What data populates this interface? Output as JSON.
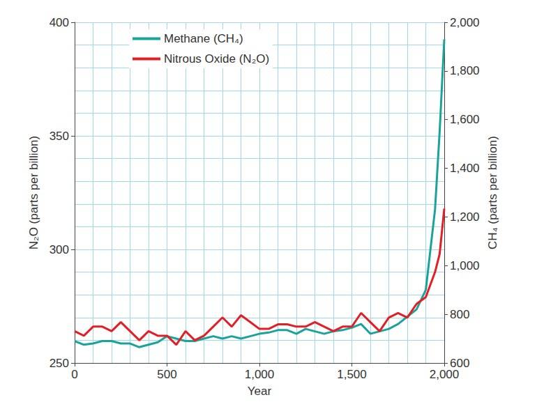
{
  "chart_data": {
    "type": "line",
    "x_label": "Year",
    "y_label": "N₂O (parts per billion)",
    "y2_label": "CH₄ (parts per billion)",
    "x": [
      0,
      50,
      100,
      150,
      200,
      250,
      300,
      350,
      400,
      450,
      500,
      550,
      600,
      650,
      700,
      750,
      800,
      850,
      900,
      950,
      1000,
      1050,
      1100,
      1150,
      1200,
      1250,
      1300,
      1350,
      1400,
      1450,
      1500,
      1550,
      1600,
      1650,
      1700,
      1750,
      1800,
      1850,
      1900,
      1950,
      1975,
      2000
    ],
    "series": [
      {
        "name": "Methane (CH₄)",
        "color": "#1aa39a",
        "axis": "y2",
        "values": [
          690,
          675,
          680,
          690,
          690,
          680,
          680,
          665,
          675,
          685,
          710,
          700,
          690,
          690,
          700,
          710,
          700,
          710,
          700,
          710,
          720,
          725,
          735,
          735,
          720,
          740,
          730,
          720,
          730,
          735,
          745,
          760,
          720,
          730,
          740,
          760,
          790,
          820,
          900,
          1230,
          1550,
          1930
        ]
      },
      {
        "name": "Nitrous Oxide (N₂O)",
        "color": "#e31e24",
        "axis": "y",
        "values": [
          264,
          262,
          266,
          266,
          264,
          268,
          264,
          260,
          264,
          262,
          262,
          258,
          264,
          260,
          262,
          266,
          270,
          266,
          271,
          268,
          265,
          265,
          267,
          267,
          266,
          266,
          268,
          266,
          264,
          266,
          266,
          272,
          268,
          264,
          270,
          272,
          270,
          276,
          279,
          290,
          298,
          318
        ]
      }
    ],
    "xlim": [
      0,
      2000
    ],
    "xticks": [
      0,
      500,
      1000,
      1500,
      2000
    ],
    "ylim": [
      250,
      400
    ],
    "yticks": [
      250,
      300,
      350,
      400
    ],
    "y2lim": [
      600,
      2000
    ],
    "y2ticks": [
      600,
      800,
      1000,
      1200,
      1400,
      1600,
      1800,
      2000
    ],
    "grid": true,
    "legend": "upper left"
  }
}
